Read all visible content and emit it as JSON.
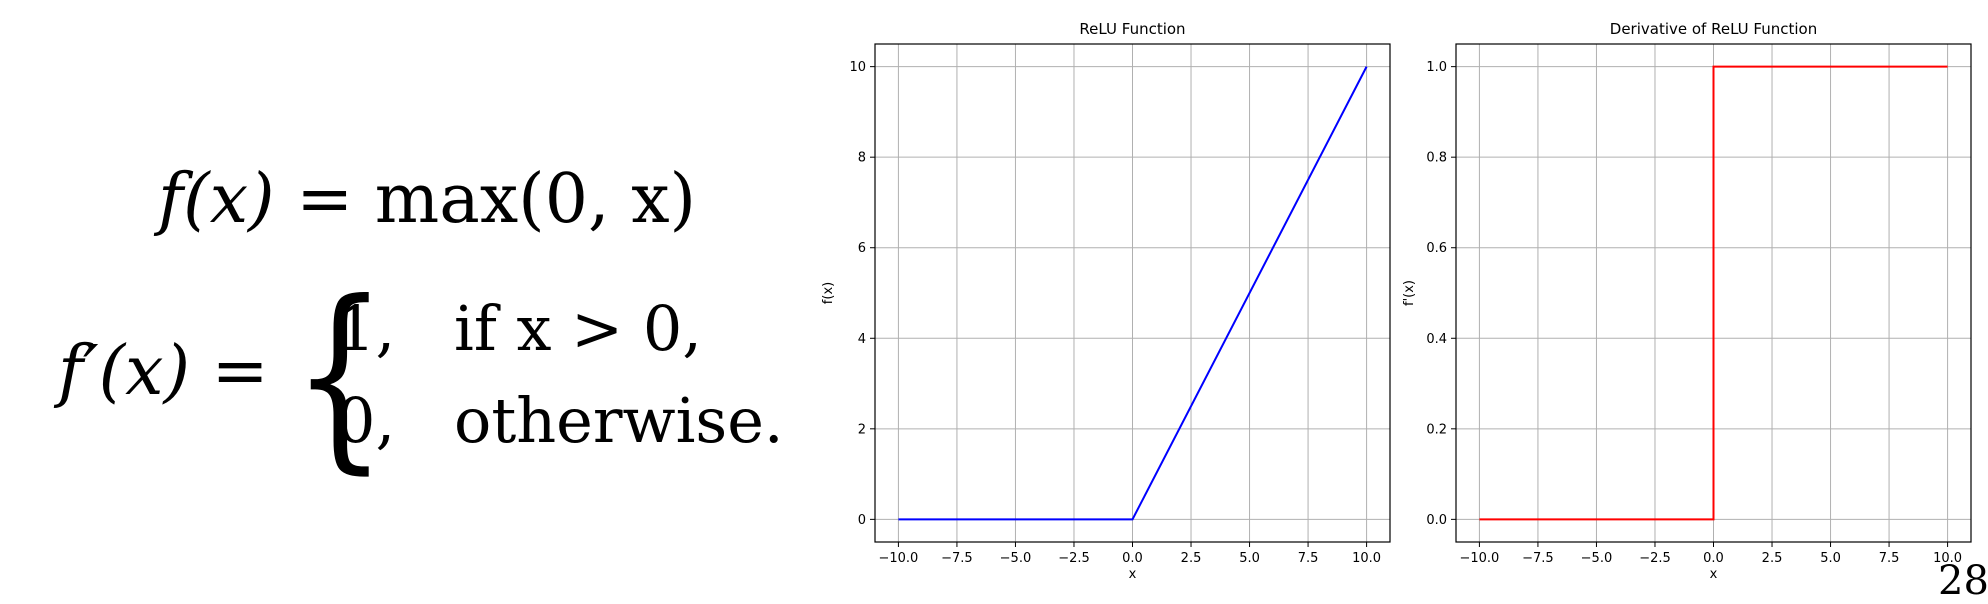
{
  "formulas": {
    "relu_lhs": "f(x)",
    "relu_rhs": "= max(0, x)",
    "deriv_lhs": "f′(x) =",
    "case1_value": "1,",
    "case1_condition": "if x > 0,",
    "case2_value": "0,",
    "case2_condition": "otherwise."
  },
  "page_number": "28",
  "chart_data": [
    {
      "type": "line",
      "title": "ReLU Function",
      "xlabel": "x",
      "ylabel": "f(x)",
      "xlim": [
        -11.0,
        11.0
      ],
      "ylim": [
        -0.5,
        10.5
      ],
      "xticks": [
        -10.0,
        -7.5,
        -5.0,
        -2.5,
        0.0,
        2.5,
        5.0,
        7.5,
        10.0
      ],
      "xtick_labels": [
        "−10.0",
        "−7.5",
        "−5.0",
        "−2.5",
        "0.0",
        "2.5",
        "5.0",
        "7.5",
        "10.0"
      ],
      "yticks": [
        0,
        2,
        4,
        6,
        8,
        10
      ],
      "ytick_labels": [
        "0",
        "2",
        "4",
        "6",
        "8",
        "10"
      ],
      "grid": true,
      "series": [
        {
          "color": "#0000ff",
          "x": [
            -10,
            0,
            10
          ],
          "y": [
            0,
            0,
            10
          ]
        }
      ]
    },
    {
      "type": "line",
      "title": "Derivative of ReLU Function",
      "xlabel": "x",
      "ylabel": "f'(x)",
      "xlim": [
        -11.0,
        11.0
      ],
      "ylim": [
        -0.05,
        1.05
      ],
      "xticks": [
        -10.0,
        -7.5,
        -5.0,
        -2.5,
        0.0,
        2.5,
        5.0,
        7.5,
        10.0
      ],
      "xtick_labels": [
        "−10.0",
        "−7.5",
        "−5.0",
        "−2.5",
        "0.0",
        "2.5",
        "5.0",
        "7.5",
        "10.0"
      ],
      "yticks": [
        0.0,
        0.2,
        0.4,
        0.6,
        0.8,
        1.0
      ],
      "ytick_labels": [
        "0.0",
        "0.2",
        "0.4",
        "0.6",
        "0.8",
        "1.0"
      ],
      "grid": true,
      "series": [
        {
          "color": "#ff0000",
          "x": [
            -10,
            0,
            0,
            10
          ],
          "y": [
            0,
            0,
            1,
            1
          ]
        }
      ]
    }
  ]
}
